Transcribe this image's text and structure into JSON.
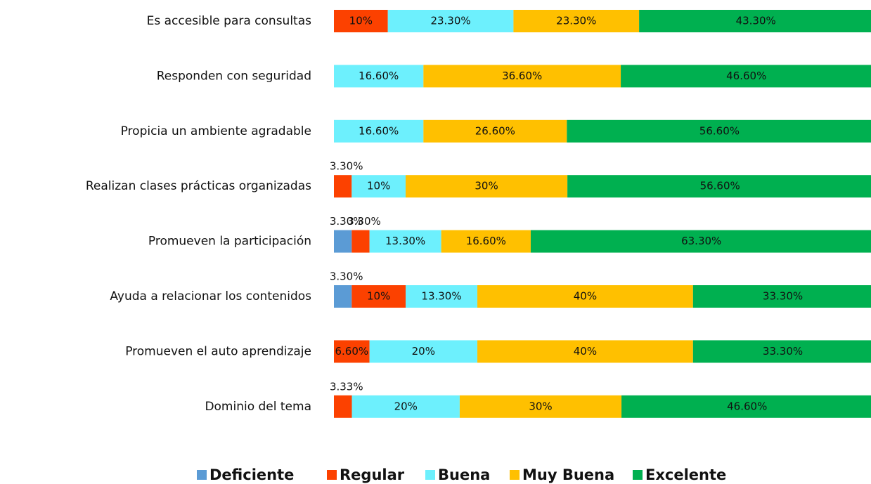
{
  "chart_data": {
    "type": "stacked-barh",
    "categories": [
      "Es accesible para consultas",
      "Responden con seguridad",
      "Propicia un ambiente agradable",
      "Realizan clases prácticas organizadas",
      "Promueven la participación",
      "Ayuda a relacionar los contenidos",
      "Promueven el auto aprendizaje",
      "Dominio del tema"
    ],
    "series": [
      {
        "name": "Deficiente",
        "color": "#5b9bd5",
        "values": [
          null,
          null,
          null,
          null,
          3.3,
          3.3,
          null,
          null
        ],
        "value_labels": [
          null,
          null,
          null,
          null,
          "3.30%",
          "3.30%",
          null,
          null
        ]
      },
      {
        "name": "Regular",
        "color": "#fc4100",
        "values": [
          10,
          null,
          null,
          3.3,
          3.3,
          10,
          6.6,
          3.33
        ],
        "value_labels": [
          "10%",
          null,
          null,
          "3.30%",
          "3.30%",
          "10%",
          "6.60%",
          "3.33%"
        ]
      },
      {
        "name": "Buena",
        "color": "#6df0fd",
        "values": [
          23.3,
          16.6,
          16.6,
          10,
          13.3,
          13.3,
          20,
          20
        ],
        "value_labels": [
          "23.30%",
          "16.60%",
          "16.60%",
          "10%",
          "13.30%",
          "13.30%",
          "20%",
          "20%"
        ]
      },
      {
        "name": "Muy Buena",
        "color": "#ffc000",
        "values": [
          23.3,
          36.6,
          26.6,
          30,
          16.6,
          40,
          40,
          30
        ],
        "value_labels": [
          "23.30%",
          "36.60%",
          "26.60%",
          "30%",
          "16.60%",
          "40%",
          "40%",
          "30%"
        ]
      },
      {
        "name": "Excelente",
        "color": "#00b050",
        "values": [
          43.3,
          46.6,
          56.6,
          56.6,
          63.3,
          33.3,
          33.3,
          46.6
        ],
        "value_labels": [
          "43.30%",
          "46.60%",
          "56.60%",
          "56.60%",
          "63.30%",
          "33.30%",
          "33.30%",
          "46.60%"
        ]
      }
    ],
    "legend": "bottom"
  }
}
